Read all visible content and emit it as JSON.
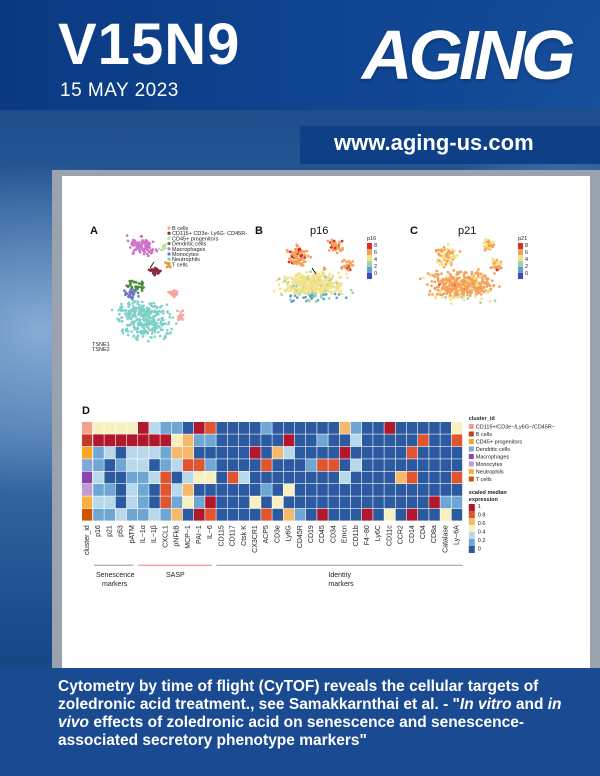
{
  "header": {
    "volume": "V15N9",
    "date": "15 MAY 2023",
    "logo": "AGING",
    "url": "www.aging-us.com"
  },
  "figure": {
    "panelA": {
      "letter": "A",
      "legend": [
        "B cells",
        "CD115+ CD3e- Ly6G- CD45R-",
        "CD45+ progenitors",
        "Dendritic cells",
        "Macrophages",
        "Monocytes",
        "Neutrophils",
        "T cells"
      ],
      "legend_colors": [
        "#f3a6a0",
        "#8a2a3a",
        "#b7e3a7",
        "#4a8a3a",
        "#d070c8",
        "#6b78c8",
        "#7ed0c8",
        "#e39a3a"
      ],
      "axis_x": "TSNE1",
      "axis_y": "TSNE2"
    },
    "panelB": {
      "letter": "B",
      "title": "p16",
      "scale_label": "p16",
      "ticks": [
        "8",
        "6",
        "4",
        "2",
        "0"
      ]
    },
    "panelC": {
      "letter": "C",
      "title": "p21",
      "scale_label": "p21",
      "ticks": [
        "8",
        "6",
        "4",
        "2",
        "0"
      ]
    },
    "panelD": {
      "letter": "D",
      "columns": [
        "cluster_id",
        "p16",
        "p21",
        "p53",
        "pATM",
        "IL−1α",
        "IL−1β",
        "CXCL1",
        "pNFkB",
        "MCP−1",
        "PAI−1",
        "IL−6",
        "CD115",
        "CD117",
        "Ctsk K",
        "CX3CR1",
        "ACP5",
        "CD3e",
        "Ly6G",
        "CD45R",
        "CD19",
        "CD45",
        "CD34",
        "Emcn",
        "CD11b",
        "F4−80",
        "Ly6C",
        "CD11c",
        "CCR2",
        "CD14",
        "CD4",
        "CD8a",
        "Catalase",
        "Ly−6A"
      ],
      "groups": [
        "Senescence markers",
        "SASP",
        "Identity markers"
      ],
      "cluster_legend_title": "cluster_id",
      "cluster_legend": [
        "CD115+/CD3e−/Ly6G−/CD45R−",
        "B cells",
        "CD45+ progenitors",
        "Dendritic cells",
        "Macrophages",
        "Monocytes",
        "Neutrophils",
        "T cells"
      ],
      "scale_title": "scaled median expression",
      "scale_ticks": [
        "1",
        "0.8",
        "0.6",
        "0.4",
        "0.2",
        "0"
      ]
    }
  },
  "caption": {
    "line1": "Cytometry by time of flight (CyTOF) reveals the cellular targets of zoledronic acid treatment., see Samakkarnthai et al. - \"",
    "italic1": "In vitro",
    "line2": " and ",
    "italic2": "in vivo",
    "line3": " effects of zoledronic acid on senescence and senescence-associated secretory phenotype markers\""
  }
}
